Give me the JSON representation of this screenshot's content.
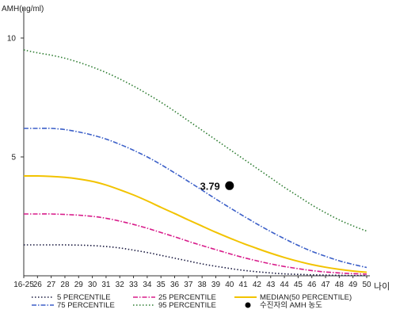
{
  "chart_data": {
    "type": "line",
    "ylabel": "AMH(ng/ml)",
    "xlabel": "나이",
    "ylim": [
      0,
      11
    ],
    "yticks": [
      "10",
      "5"
    ],
    "categories": [
      "16-25",
      "26",
      "27",
      "28",
      "29",
      "30",
      "31",
      "32",
      "33",
      "34",
      "35",
      "36",
      "37",
      "38",
      "39",
      "40",
      "41",
      "42",
      "43",
      "44",
      "45",
      "46",
      "47",
      "48",
      "49",
      "50"
    ],
    "series": [
      {
        "name": "5 PERCENTILE",
        "color": "#1a1a40",
        "dash": "dot",
        "values": [
          1.3,
          1.3,
          1.3,
          1.3,
          1.29,
          1.27,
          1.23,
          1.17,
          1.08,
          0.98,
          0.86,
          0.74,
          0.62,
          0.5,
          0.4,
          0.31,
          0.23,
          0.17,
          0.12,
          0.08,
          0.06,
          0.04,
          0.03,
          0.02,
          0.01,
          0.01
        ]
      },
      {
        "name": "25 PERCENTILE",
        "color": "#d81b8a",
        "dash": "dashdot",
        "values": [
          2.6,
          2.6,
          2.6,
          2.58,
          2.55,
          2.5,
          2.42,
          2.3,
          2.16,
          2.0,
          1.82,
          1.64,
          1.45,
          1.27,
          1.1,
          0.93,
          0.77,
          0.63,
          0.5,
          0.39,
          0.3,
          0.22,
          0.16,
          0.12,
          0.09,
          0.07
        ]
      },
      {
        "name": "MEDIAN(50 PERCENTILE)",
        "color": "#f2c300",
        "dash": "solid",
        "values": [
          4.2,
          4.2,
          4.18,
          4.14,
          4.07,
          3.97,
          3.82,
          3.62,
          3.4,
          3.15,
          2.88,
          2.62,
          2.35,
          2.09,
          1.83,
          1.59,
          1.36,
          1.15,
          0.95,
          0.77,
          0.61,
          0.47,
          0.36,
          0.27,
          0.2,
          0.15
        ]
      },
      {
        "name": "75 PERCENTILE",
        "color": "#3b5fc8",
        "dash": "dashdot",
        "values": [
          6.2,
          6.2,
          6.2,
          6.15,
          6.05,
          5.92,
          5.75,
          5.53,
          5.28,
          5.0,
          4.68,
          4.33,
          3.97,
          3.6,
          3.23,
          2.87,
          2.52,
          2.18,
          1.86,
          1.56,
          1.28,
          1.03,
          0.82,
          0.63,
          0.48,
          0.35
        ]
      },
      {
        "name": "95 PERCENTILE",
        "color": "#2e7d32",
        "dash": "dot",
        "values": [
          9.5,
          9.38,
          9.28,
          9.15,
          8.98,
          8.78,
          8.55,
          8.28,
          7.98,
          7.65,
          7.3,
          6.92,
          6.52,
          6.12,
          5.72,
          5.32,
          4.92,
          4.52,
          4.12,
          3.72,
          3.35,
          2.98,
          2.65,
          2.35,
          2.1,
          1.88
        ]
      }
    ],
    "marker": {
      "label": "수진자의 AMH 농도",
      "value_label": "3.79",
      "category": "40",
      "value": 3.79,
      "color": "#000000"
    },
    "grid": false,
    "legend_position": "bottom"
  }
}
